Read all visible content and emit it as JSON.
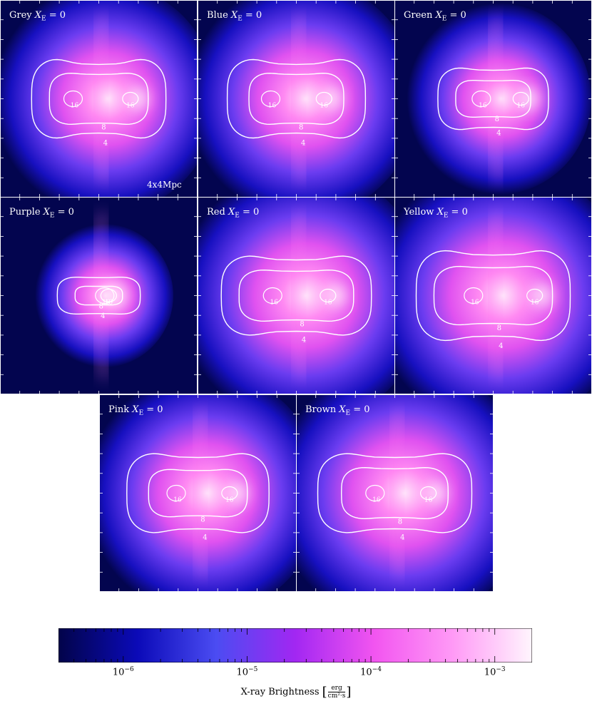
{
  "chart_data": [
    {
      "type": "heatmap",
      "title": "Grey",
      "label_var": "X_E",
      "label_value": "= 0",
      "scale_label": "4x4Mpc",
      "contours": [
        {
          "value": "4",
          "rx": 0.34,
          "ry": 0.22,
          "waist": 0.07
        },
        {
          "value": "8",
          "rx": 0.25,
          "ry": 0.14,
          "waist": 0.04
        },
        {
          "value": "16",
          "cores": [
            0.37,
            0.66
          ]
        }
      ]
    },
    {
      "type": "heatmap",
      "title": "Blue",
      "label_var": "X_E",
      "label_value": "= 0",
      "contours": [
        {
          "value": "4",
          "rx": 0.35,
          "ry": 0.22,
          "waist": 0.07
        },
        {
          "value": "8",
          "rx": 0.24,
          "ry": 0.14,
          "waist": 0.04
        },
        {
          "value": "16",
          "cores": [
            0.37,
            0.64
          ]
        }
      ]
    },
    {
      "type": "heatmap",
      "title": "Green",
      "label_var": "X_E",
      "label_value": "= 0",
      "contours": [
        {
          "value": "4",
          "rx": 0.28,
          "ry": 0.17,
          "waist": 0.05
        },
        {
          "value": "8",
          "rx": 0.19,
          "ry": 0.1,
          "waist": 0.03
        },
        {
          "value": "16",
          "cores": [
            0.44,
            0.64
          ]
        }
      ]
    },
    {
      "type": "heatmap",
      "title": "Purple",
      "label_var": "X_E",
      "label_value": "= 0",
      "contours": [
        {
          "value": "4",
          "rx": 0.21,
          "ry": 0.1,
          "waist": 0.03
        },
        {
          "value": "8",
          "rx": 0.12,
          "ry": 0.05,
          "waist": 0.02
        },
        {
          "value": "16",
          "cores": [
            0.53,
            0.55
          ]
        }
      ]
    },
    {
      "type": "heatmap",
      "title": "Red",
      "label_var": "X_E",
      "label_value": "= 0",
      "contours": [
        {
          "value": "4",
          "rx": 0.38,
          "ry": 0.22,
          "waist": 0.06
        },
        {
          "value": "8",
          "rx": 0.29,
          "ry": 0.14,
          "waist": 0.04
        },
        {
          "value": "16",
          "cores": [
            0.38,
            0.66
          ]
        }
      ]
    },
    {
      "type": "heatmap",
      "title": "Yellow",
      "label_var": "X_E",
      "label_value": "= 0",
      "contours": [
        {
          "value": "4",
          "rx": 0.39,
          "ry": 0.25,
          "waist": 0.06
        },
        {
          "value": "8",
          "rx": 0.3,
          "ry": 0.16,
          "waist": 0.04
        },
        {
          "value": "16",
          "cores": [
            0.4,
            0.71
          ]
        }
      ]
    },
    {
      "type": "heatmap",
      "title": "Pink",
      "label_var": "X_E",
      "label_value": "= 0",
      "contours": [
        {
          "value": "4",
          "rx": 0.36,
          "ry": 0.22,
          "waist": 0.06
        },
        {
          "value": "8",
          "rx": 0.25,
          "ry": 0.13,
          "waist": 0.04
        },
        {
          "value": "16",
          "cores": [
            0.39,
            0.66
          ]
        }
      ]
    },
    {
      "type": "heatmap",
      "title": "Brown",
      "label_var": "X_E",
      "label_value": "= 0",
      "contours": [
        {
          "value": "4",
          "rx": 0.39,
          "ry": 0.22,
          "waist": 0.06
        },
        {
          "value": "8",
          "rx": 0.27,
          "ry": 0.14,
          "waist": 0.04
        },
        {
          "value": "16",
          "cores": [
            0.4,
            0.67
          ]
        }
      ]
    }
  ],
  "colorbar": {
    "label": "X-ray Brightness",
    "unit_numerator": "erg",
    "unit_denominator": "cm²·s",
    "scale": "log",
    "range": [
      3e-07,
      0.002
    ],
    "ticks": [
      {
        "value": 1e-06,
        "base": "10",
        "exp": "−6"
      },
      {
        "value": 1e-05,
        "base": "10",
        "exp": "−5"
      },
      {
        "value": 0.0001,
        "base": "10",
        "exp": "−4"
      },
      {
        "value": 0.001,
        "base": "10",
        "exp": "−3"
      }
    ],
    "colors": [
      "#02044a",
      "#0b0ab8",
      "#4b4cf2",
      "#a227f2",
      "#f255f0",
      "#ff9af6",
      "#fff5fd"
    ]
  }
}
